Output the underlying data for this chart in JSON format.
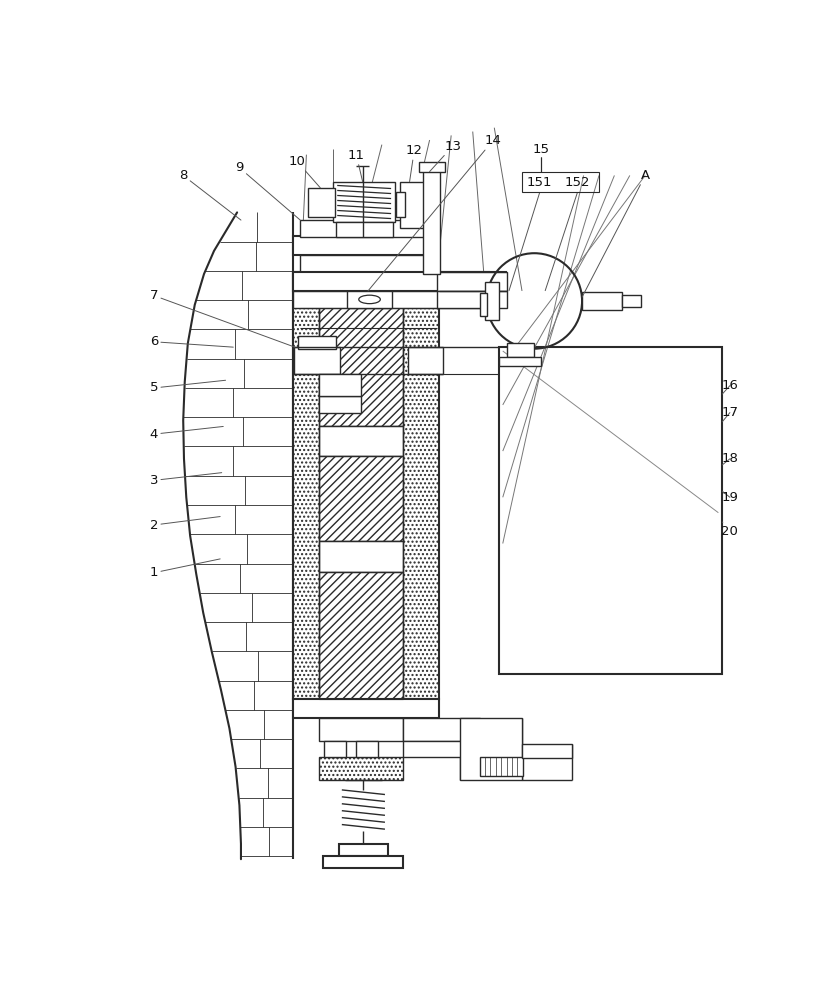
{
  "bg": "#ffffff",
  "lc": "#2a2a2a",
  "figsize": [
    8.33,
    10.0
  ],
  "dpi": 100,
  "fs": 9.5
}
